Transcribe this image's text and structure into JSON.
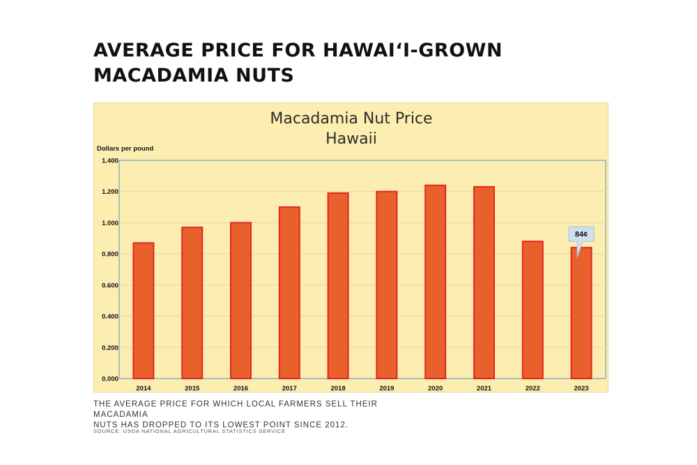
{
  "headline": {
    "line1": "AVERAGE PRICE FOR HAWAI‘I-GROWN",
    "line2": "MACADAMIA NUTS"
  },
  "caption": {
    "line1": "THE AVERAGE PRICE FOR WHICH LOCAL FARMERS SELL THEIR MACADAMIA",
    "line2": "NUTS HAS DROPPED TO ITS LOWEST POINT SINCE 2012."
  },
  "source": "SOURCE: USDA NATIONAL AGRICULTURAL STATISTICS SERVICE",
  "colors": {
    "panel_bg": "#fbeeb0",
    "bar_fill": "#e8612c",
    "bar_stroke": "#e52421",
    "plot_border": "#5b8ec5",
    "callout_bg": "#cfe0f0"
  },
  "chart_data": {
    "type": "bar",
    "title": "Macadamia Nut Price",
    "subtitle": "Hawaii",
    "ylabel": "Dollars per pound",
    "xlabel": "",
    "ylim": [
      0,
      1.4
    ],
    "yticks": [
      "0.000",
      "0.200",
      "0.400",
      "0.600",
      "0.800",
      "1.000",
      "1.200",
      "1.400"
    ],
    "grid": true,
    "categories": [
      "2014",
      "2015",
      "2016",
      "2017",
      "2018",
      "2019",
      "2020",
      "2021",
      "2022",
      "2023"
    ],
    "values": [
      0.87,
      0.97,
      1.0,
      1.1,
      1.19,
      1.2,
      1.24,
      1.23,
      0.88,
      0.84
    ],
    "annotation": {
      "category": "2023",
      "text": "84¢"
    }
  }
}
